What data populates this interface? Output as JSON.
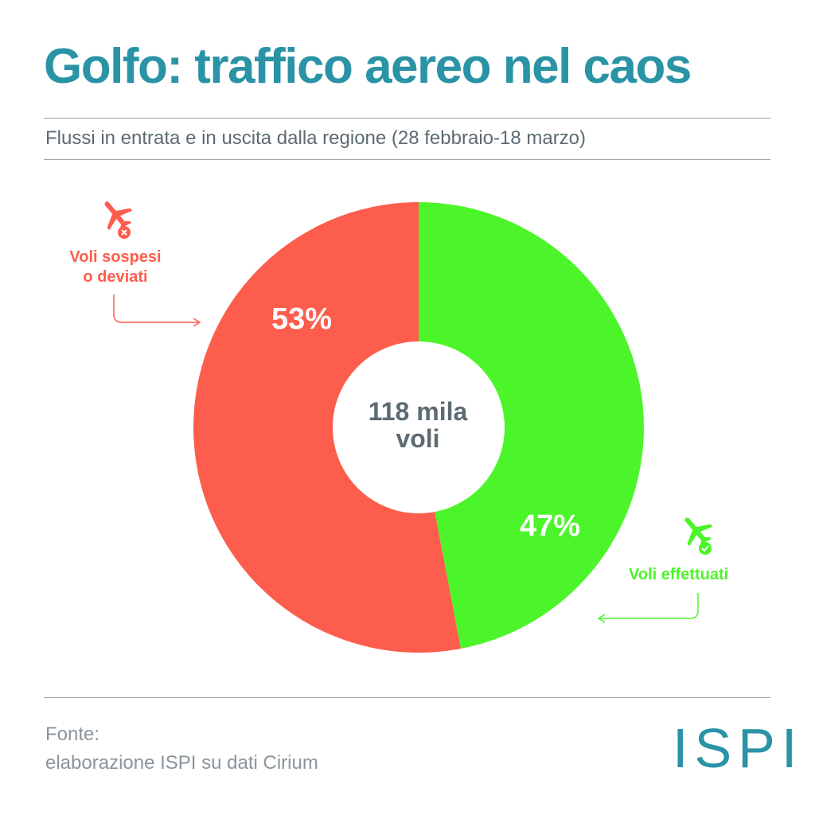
{
  "title": "Golfo: traffico aereo nel caos",
  "subtitle": "Flussi in entrata e in uscita dalla regione (28 febbraio-18 marzo)",
  "chart_data": {
    "type": "pie",
    "center_label_line1": "118 mila",
    "center_label_line2": "voli",
    "slices": [
      {
        "label_line1": "Voli effettuati",
        "label_line2": "",
        "value": 47,
        "value_label": "47%",
        "color": "#4cf52a",
        "icon": "airplane-check-icon"
      },
      {
        "label_line1": "Voli sospesi",
        "label_line2": "o deviati",
        "value": 53,
        "value_label": "53%",
        "color": "#fd5d4c",
        "icon": "airplane-cancel-icon"
      }
    ]
  },
  "source": {
    "line1": "Fonte:",
    "line2": "elaborazione ISPI su dati Cirium"
  },
  "logo": "ISPI",
  "colors": {
    "accent": "#2a93a5",
    "red": "#fd5d4c",
    "green": "#4cf52a",
    "text": "#5c6a72"
  }
}
